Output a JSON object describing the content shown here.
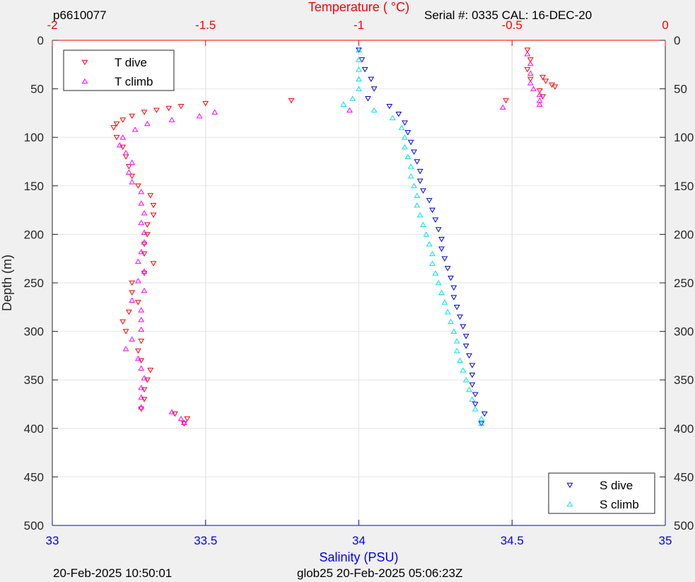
{
  "header": {
    "id": "p6610077",
    "serial": "Serial #: 0335  CAL: 16-DEC-20"
  },
  "footer": {
    "timestamp": "20-Feb-2025 10:50:01",
    "mission": "glob25 20-Feb-2025 05:06:23Z"
  },
  "colors": {
    "t_dive": "#ff0000",
    "t_climb": "#ff00ff",
    "s_dive": "#0000dd",
    "s_climb": "#00e5e5",
    "temp_axis": "#ff0000",
    "sal_axis": "#0000ff",
    "grid": "#e6e6e6",
    "temp_grid": "#ffcccc"
  },
  "chart_data": {
    "type": "scatter",
    "ylabel": "Depth (m)",
    "ylim": [
      0,
      500
    ],
    "y_reversed": true,
    "yticks": [
      0,
      50,
      100,
      150,
      200,
      250,
      300,
      350,
      400,
      450,
      500
    ],
    "temperature_axis": {
      "label": "Temperature (    °C)",
      "position": "top",
      "range": [
        -2,
        0
      ],
      "ticks": [
        -2,
        -1.5,
        -1,
        -0.5,
        0
      ]
    },
    "salinity_axis": {
      "label": "Salinity (PSU)",
      "position": "bottom",
      "range": [
        33,
        35
      ],
      "ticks": [
        33,
        33.5,
        34,
        34.5,
        35
      ]
    },
    "legend_temperature": {
      "placement": "top-left",
      "entries": [
        "T dive",
        "T climb"
      ]
    },
    "legend_salinity": {
      "placement": "bottom-right",
      "entries": [
        "S dive",
        "S climb"
      ]
    },
    "grid": true,
    "series": [
      {
        "name": "T dive",
        "axis": "temperature",
        "marker": "triangle-down",
        "points": [
          [
            -0.45,
            10
          ],
          [
            -0.44,
            20
          ],
          [
            -0.45,
            30
          ],
          [
            -0.44,
            40
          ],
          [
            -0.4,
            38
          ],
          [
            -0.39,
            42
          ],
          [
            -0.37,
            46
          ],
          [
            -0.36,
            48
          ],
          [
            -0.41,
            52
          ],
          [
            -0.4,
            58
          ],
          [
            -0.52,
            62
          ],
          [
            -1.22,
            62
          ],
          [
            -1.5,
            65
          ],
          [
            -1.58,
            68
          ],
          [
            -1.62,
            70
          ],
          [
            -1.66,
            72
          ],
          [
            -1.7,
            74
          ],
          [
            -1.74,
            78
          ],
          [
            -1.77,
            82
          ],
          [
            -1.79,
            86
          ],
          [
            -1.8,
            90
          ],
          [
            -1.79,
            100
          ],
          [
            -1.77,
            110
          ],
          [
            -1.76,
            120
          ],
          [
            -1.75,
            130
          ],
          [
            -1.74,
            140
          ],
          [
            -1.72,
            150
          ],
          [
            -1.68,
            160
          ],
          [
            -1.67,
            170
          ],
          [
            -1.67,
            180
          ],
          [
            -1.69,
            190
          ],
          [
            -1.69,
            200
          ],
          [
            -1.7,
            210
          ],
          [
            -1.7,
            220
          ],
          [
            -1.67,
            230
          ],
          [
            -1.7,
            240
          ],
          [
            -1.74,
            250
          ],
          [
            -1.74,
            260
          ],
          [
            -1.72,
            270
          ],
          [
            -1.75,
            280
          ],
          [
            -1.77,
            290
          ],
          [
            -1.76,
            300
          ],
          [
            -1.71,
            310
          ],
          [
            -1.72,
            320
          ],
          [
            -1.71,
            330
          ],
          [
            -1.68,
            340
          ],
          [
            -1.69,
            350
          ],
          [
            -1.7,
            360
          ],
          [
            -1.7,
            370
          ],
          [
            -1.71,
            380
          ],
          [
            -1.6,
            385
          ],
          [
            -1.56,
            390
          ],
          [
            -1.57,
            395
          ]
        ]
      },
      {
        "name": "T climb",
        "axis": "temperature",
        "marker": "triangle-up",
        "points": [
          [
            -0.45,
            14
          ],
          [
            -0.44,
            24
          ],
          [
            -0.44,
            34
          ],
          [
            -0.44,
            44
          ],
          [
            -0.43,
            50
          ],
          [
            -0.41,
            56
          ],
          [
            -0.41,
            62
          ],
          [
            -0.41,
            66
          ],
          [
            -0.53,
            69
          ],
          [
            -1.03,
            72
          ],
          [
            -1.47,
            74
          ],
          [
            -1.52,
            78
          ],
          [
            -1.61,
            82
          ],
          [
            -1.69,
            86
          ],
          [
            -1.73,
            92
          ],
          [
            -1.77,
            100
          ],
          [
            -1.78,
            108
          ],
          [
            -1.76,
            116
          ],
          [
            -1.74,
            126
          ],
          [
            -1.75,
            136
          ],
          [
            -1.74,
            146
          ],
          [
            -1.71,
            156
          ],
          [
            -1.71,
            168
          ],
          [
            -1.7,
            178
          ],
          [
            -1.71,
            188
          ],
          [
            -1.7,
            198
          ],
          [
            -1.7,
            208
          ],
          [
            -1.71,
            218
          ],
          [
            -1.72,
            228
          ],
          [
            -1.7,
            238
          ],
          [
            -1.72,
            248
          ],
          [
            -1.7,
            258
          ],
          [
            -1.74,
            268
          ],
          [
            -1.71,
            278
          ],
          [
            -1.71,
            288
          ],
          [
            -1.71,
            298
          ],
          [
            -1.74,
            308
          ],
          [
            -1.76,
            318
          ],
          [
            -1.72,
            328
          ],
          [
            -1.71,
            338
          ],
          [
            -1.7,
            348
          ],
          [
            -1.71,
            358
          ],
          [
            -1.71,
            368
          ],
          [
            -1.71,
            378
          ],
          [
            -1.61,
            383
          ],
          [
            -1.58,
            390
          ],
          [
            -1.57,
            394
          ]
        ]
      },
      {
        "name": "S dive",
        "axis": "salinity",
        "marker": "triangle-down",
        "points": [
          [
            34.0,
            10
          ],
          [
            34.01,
            20
          ],
          [
            34.02,
            30
          ],
          [
            34.04,
            40
          ],
          [
            34.05,
            50
          ],
          [
            34.03,
            60
          ],
          [
            34.1,
            68
          ],
          [
            34.13,
            76
          ],
          [
            34.15,
            85
          ],
          [
            34.16,
            95
          ],
          [
            34.17,
            105
          ],
          [
            34.18,
            115
          ],
          [
            34.19,
            125
          ],
          [
            34.2,
            135
          ],
          [
            34.2,
            145
          ],
          [
            34.21,
            155
          ],
          [
            34.23,
            165
          ],
          [
            34.24,
            175
          ],
          [
            34.25,
            185
          ],
          [
            34.26,
            195
          ],
          [
            34.27,
            205
          ],
          [
            34.27,
            215
          ],
          [
            34.28,
            225
          ],
          [
            34.29,
            235
          ],
          [
            34.3,
            245
          ],
          [
            34.31,
            255
          ],
          [
            34.31,
            265
          ],
          [
            34.32,
            275
          ],
          [
            34.33,
            285
          ],
          [
            34.34,
            295
          ],
          [
            34.35,
            305
          ],
          [
            34.35,
            315
          ],
          [
            34.36,
            325
          ],
          [
            34.37,
            335
          ],
          [
            34.37,
            345
          ],
          [
            34.37,
            355
          ],
          [
            34.38,
            365
          ],
          [
            34.38,
            375
          ],
          [
            34.41,
            385
          ],
          [
            34.4,
            395
          ]
        ]
      },
      {
        "name": "S climb",
        "axis": "salinity",
        "marker": "triangle-up",
        "points": [
          [
            34.0,
            10
          ],
          [
            34.0,
            20
          ],
          [
            34.0,
            30
          ],
          [
            34.0,
            40
          ],
          [
            34.0,
            50
          ],
          [
            33.98,
            60
          ],
          [
            33.95,
            66
          ],
          [
            34.05,
            72
          ],
          [
            34.11,
            80
          ],
          [
            34.14,
            90
          ],
          [
            34.15,
            100
          ],
          [
            34.15,
            110
          ],
          [
            34.16,
            120
          ],
          [
            34.17,
            130
          ],
          [
            34.17,
            140
          ],
          [
            34.18,
            150
          ],
          [
            34.19,
            160
          ],
          [
            34.19,
            170
          ],
          [
            34.2,
            180
          ],
          [
            34.21,
            190
          ],
          [
            34.22,
            200
          ],
          [
            34.23,
            210
          ],
          [
            34.24,
            220
          ],
          [
            34.24,
            230
          ],
          [
            34.25,
            240
          ],
          [
            34.26,
            250
          ],
          [
            34.27,
            260
          ],
          [
            34.28,
            270
          ],
          [
            34.29,
            280
          ],
          [
            34.3,
            290
          ],
          [
            34.31,
            300
          ],
          [
            34.32,
            310
          ],
          [
            34.32,
            320
          ],
          [
            34.33,
            330
          ],
          [
            34.34,
            340
          ],
          [
            34.35,
            350
          ],
          [
            34.36,
            360
          ],
          [
            34.37,
            370
          ],
          [
            34.38,
            380
          ],
          [
            34.4,
            390
          ],
          [
            34.4,
            395
          ]
        ]
      }
    ]
  }
}
